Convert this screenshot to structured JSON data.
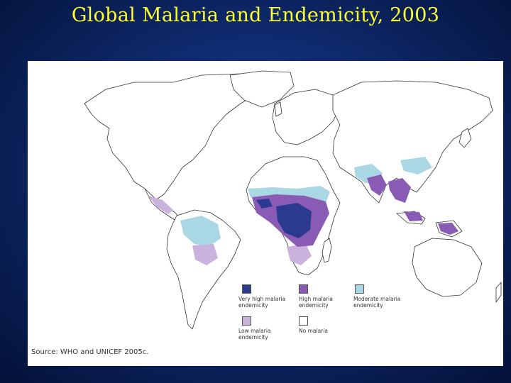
{
  "slide": {
    "title": "Global Malaria and Endemicity, 2003"
  },
  "map": {
    "legend": [
      {
        "id": "very-high",
        "label": "Very high malaria\nendemicity",
        "color": "#2b3a8f"
      },
      {
        "id": "high",
        "label": "High malaria\nendemicity",
        "color": "#8a5bb5"
      },
      {
        "id": "moderate",
        "label": "Moderate malaria\nendemicity",
        "color": "#a9d8e4"
      },
      {
        "id": "low",
        "label": "Low malaria\nendemicity",
        "color": "#c9b3dc"
      },
      {
        "id": "none",
        "label": "No malaria",
        "color": "#ffffff"
      }
    ],
    "source": "Source: WHO and UNICEF 2005c."
  }
}
